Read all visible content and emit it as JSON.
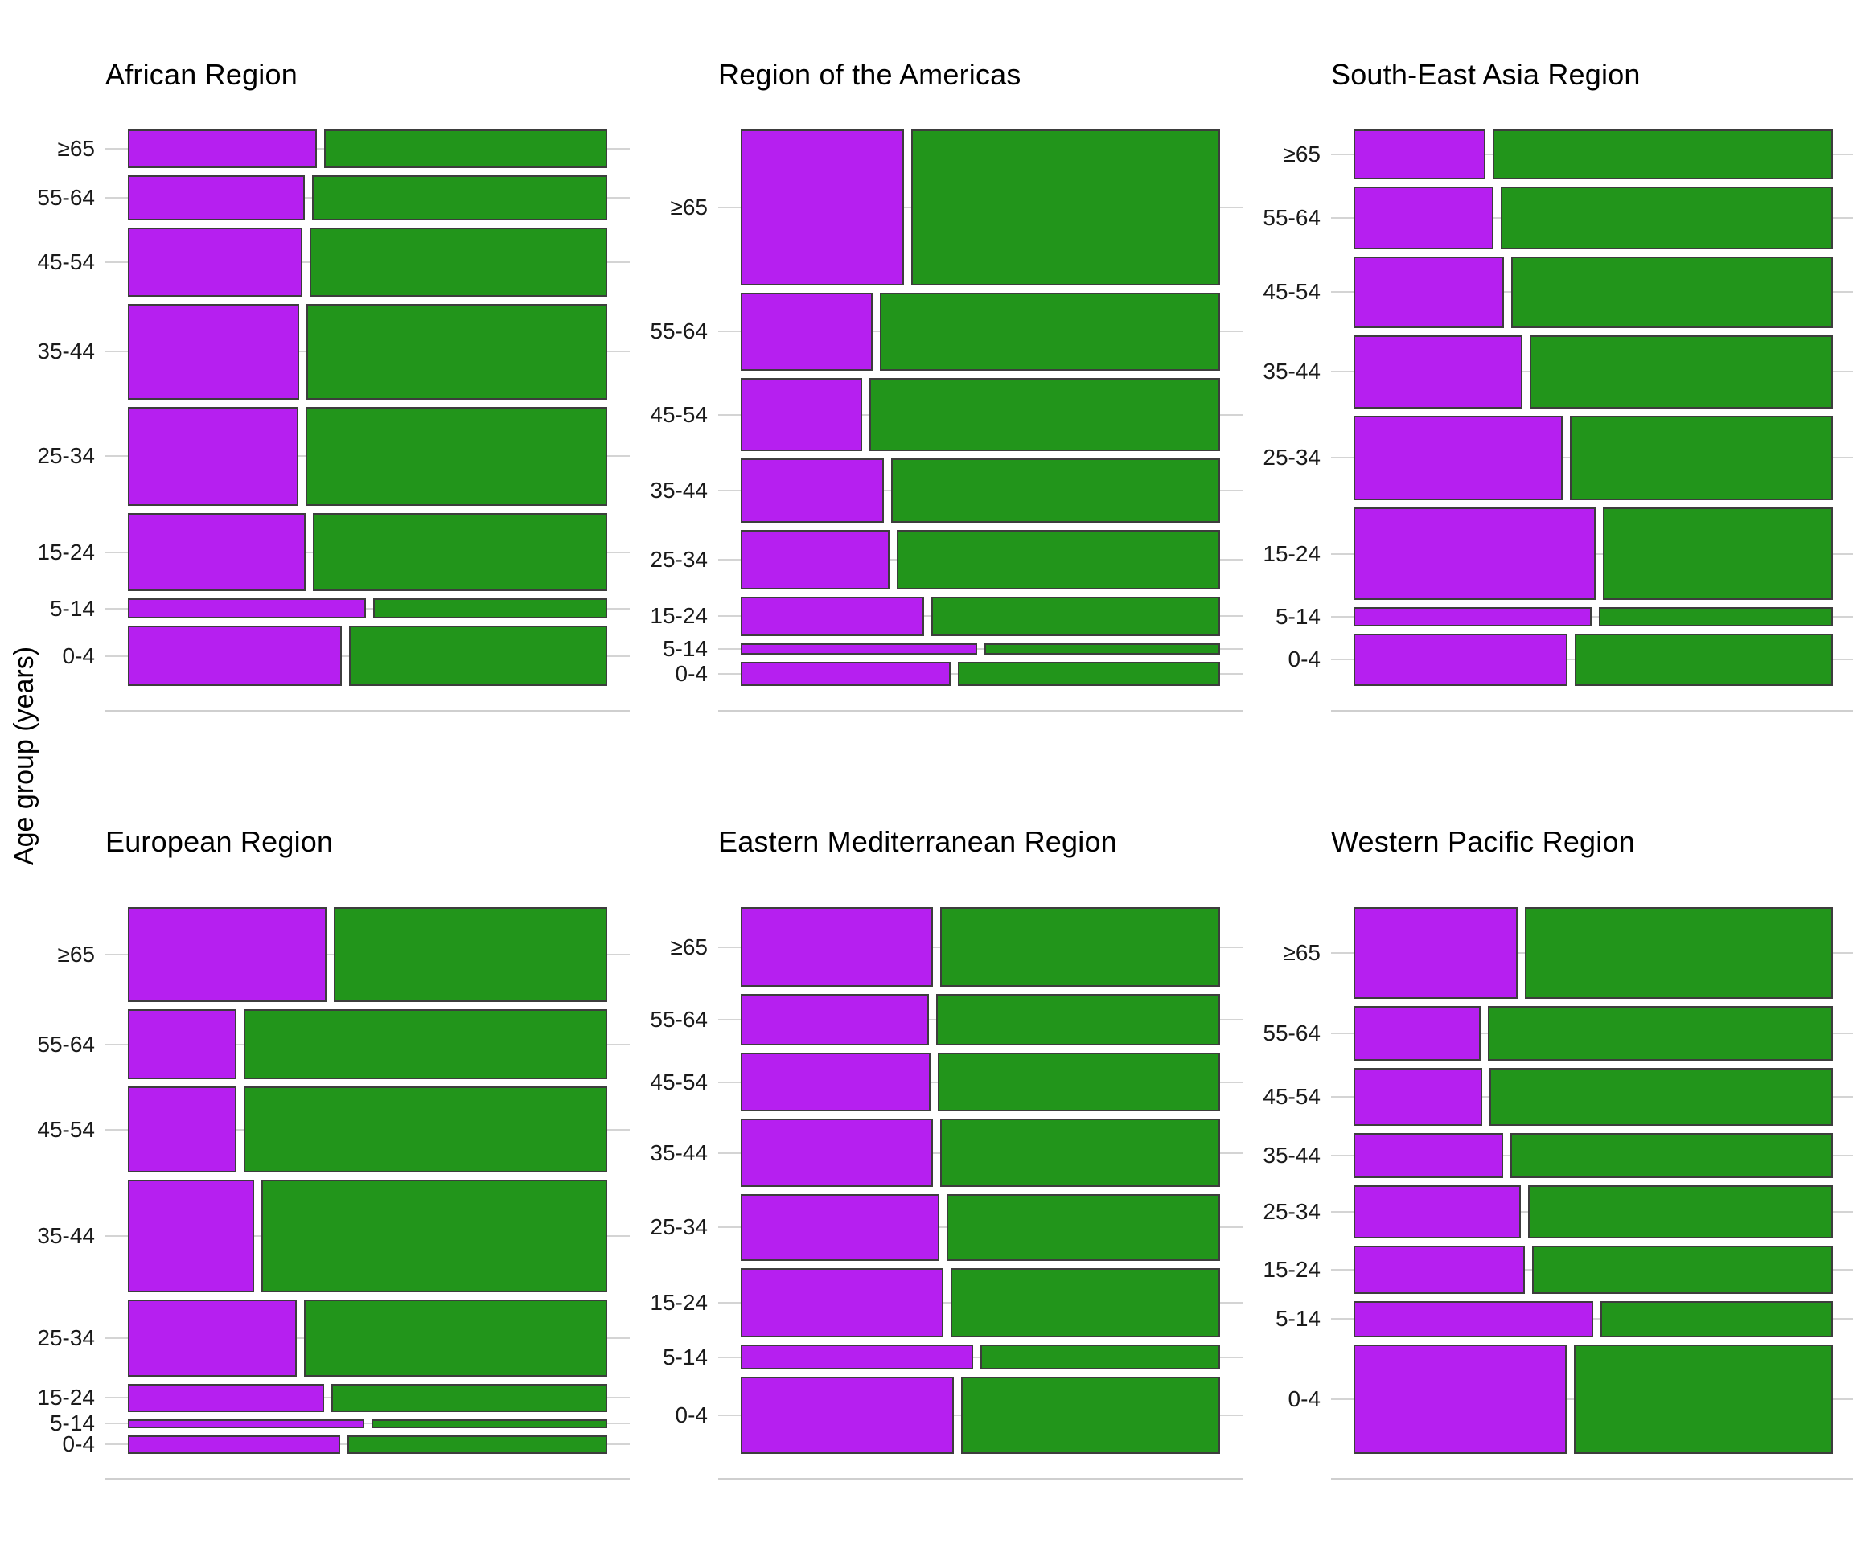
{
  "figure": {
    "y_axis_label": "Age group (years)",
    "age_groups": [
      "≥65",
      "55-64",
      "45-54",
      "35-44",
      "25-34",
      "15-24",
      "5-14",
      "0-4"
    ],
    "colors": {
      "purple_fill": "#B61FF0",
      "green_fill": "#22951B",
      "bar_border": "#3D3D3D",
      "gridline": "#D4D4D4",
      "background": "#FFFFFF",
      "title_text": "#000000",
      "tick_text": "#1A1A1A"
    }
  },
  "chart_data": [
    {
      "type": "mosaic",
      "title": "African Region",
      "grid_position": {
        "row": 0,
        "col": 0
      },
      "rows": [
        {
          "age": "≥65",
          "height_share": 0.076,
          "purple_fraction": 0.4
        },
        {
          "age": "55-64",
          "height_share": 0.09,
          "purple_fraction": 0.375
        },
        {
          "age": "45-54",
          "height_share": 0.136,
          "purple_fraction": 0.369
        },
        {
          "age": "35-44",
          "height_share": 0.189,
          "purple_fraction": 0.363
        },
        {
          "age": "25-34",
          "height_share": 0.196,
          "purple_fraction": 0.362
        },
        {
          "age": "15-24",
          "height_share": 0.154,
          "purple_fraction": 0.377
        },
        {
          "age": "5-14",
          "height_share": 0.04,
          "purple_fraction": 0.505
        },
        {
          "age": "0-4",
          "height_share": 0.119,
          "purple_fraction": 0.454
        }
      ]
    },
    {
      "type": "mosaic",
      "title": "Region of the Americas",
      "grid_position": {
        "row": 0,
        "col": 1
      },
      "rows": [
        {
          "age": "≥65",
          "height_share": 0.308,
          "purple_fraction": 0.345
        },
        {
          "age": "55-64",
          "height_share": 0.154,
          "purple_fraction": 0.279
        },
        {
          "age": "45-54",
          "height_share": 0.146,
          "purple_fraction": 0.258
        },
        {
          "age": "35-44",
          "height_share": 0.127,
          "purple_fraction": 0.303
        },
        {
          "age": "25-34",
          "height_share": 0.117,
          "purple_fraction": 0.316
        },
        {
          "age": "15-24",
          "height_share": 0.078,
          "purple_fraction": 0.389
        },
        {
          "age": "5-14",
          "height_share": 0.023,
          "purple_fraction": 0.5
        },
        {
          "age": "0-4",
          "height_share": 0.047,
          "purple_fraction": 0.444
        }
      ]
    },
    {
      "type": "mosaic",
      "title": "South-East Asia Region",
      "grid_position": {
        "row": 0,
        "col": 2
      },
      "rows": [
        {
          "age": "≥65",
          "height_share": 0.098,
          "purple_fraction": 0.28
        },
        {
          "age": "55-64",
          "height_share": 0.124,
          "purple_fraction": 0.296
        },
        {
          "age": "45-54",
          "height_share": 0.141,
          "purple_fraction": 0.318
        },
        {
          "age": "35-44",
          "height_share": 0.145,
          "purple_fraction": 0.358
        },
        {
          "age": "25-34",
          "height_share": 0.167,
          "purple_fraction": 0.443
        },
        {
          "age": "15-24",
          "height_share": 0.183,
          "purple_fraction": 0.513
        },
        {
          "age": "5-14",
          "height_share": 0.037,
          "purple_fraction": 0.505
        },
        {
          "age": "0-4",
          "height_share": 0.104,
          "purple_fraction": 0.453
        }
      ]
    },
    {
      "type": "mosaic",
      "title": "European Region",
      "grid_position": {
        "row": 1,
        "col": 0
      },
      "rows": [
        {
          "age": "≥65",
          "height_share": 0.191,
          "purple_fraction": 0.42
        },
        {
          "age": "55-64",
          "height_share": 0.142,
          "purple_fraction": 0.23
        },
        {
          "age": "45-54",
          "height_share": 0.172,
          "purple_fraction": 0.23
        },
        {
          "age": "35-44",
          "height_share": 0.228,
          "purple_fraction": 0.268
        },
        {
          "age": "25-34",
          "height_share": 0.155,
          "purple_fraction": 0.357
        },
        {
          "age": "15-24",
          "height_share": 0.057,
          "purple_fraction": 0.415
        },
        {
          "age": "5-14",
          "height_share": 0.017,
          "purple_fraction": 0.5
        },
        {
          "age": "0-4",
          "height_share": 0.038,
          "purple_fraction": 0.45
        }
      ]
    },
    {
      "type": "mosaic",
      "title": "Eastern Mediterranean Region",
      "grid_position": {
        "row": 1,
        "col": 1
      },
      "rows": [
        {
          "age": "≥65",
          "height_share": 0.161,
          "purple_fraction": 0.407
        },
        {
          "age": "55-64",
          "height_share": 0.103,
          "purple_fraction": 0.398
        },
        {
          "age": "45-54",
          "height_share": 0.119,
          "purple_fraction": 0.402
        },
        {
          "age": "35-44",
          "height_share": 0.137,
          "purple_fraction": 0.407
        },
        {
          "age": "25-34",
          "height_share": 0.134,
          "purple_fraction": 0.42
        },
        {
          "age": "15-24",
          "height_share": 0.14,
          "purple_fraction": 0.429
        },
        {
          "age": "5-14",
          "height_share": 0.051,
          "purple_fraction": 0.493
        },
        {
          "age": "0-4",
          "height_share": 0.155,
          "purple_fraction": 0.452
        }
      ]
    },
    {
      "type": "mosaic",
      "title": "Western Pacific Region",
      "grid_position": {
        "row": 1,
        "col": 2
      },
      "rows": [
        {
          "age": "≥65",
          "height_share": 0.184,
          "purple_fraction": 0.348
        },
        {
          "age": "55-64",
          "height_share": 0.111,
          "purple_fraction": 0.27
        },
        {
          "age": "45-54",
          "height_share": 0.117,
          "purple_fraction": 0.273
        },
        {
          "age": "35-44",
          "height_share": 0.09,
          "purple_fraction": 0.317
        },
        {
          "age": "25-34",
          "height_share": 0.107,
          "purple_fraction": 0.354
        },
        {
          "age": "15-24",
          "height_share": 0.098,
          "purple_fraction": 0.363
        },
        {
          "age": "5-14",
          "height_share": 0.072,
          "purple_fraction": 0.507
        },
        {
          "age": "0-4",
          "height_share": 0.221,
          "purple_fraction": 0.452
        }
      ]
    }
  ]
}
